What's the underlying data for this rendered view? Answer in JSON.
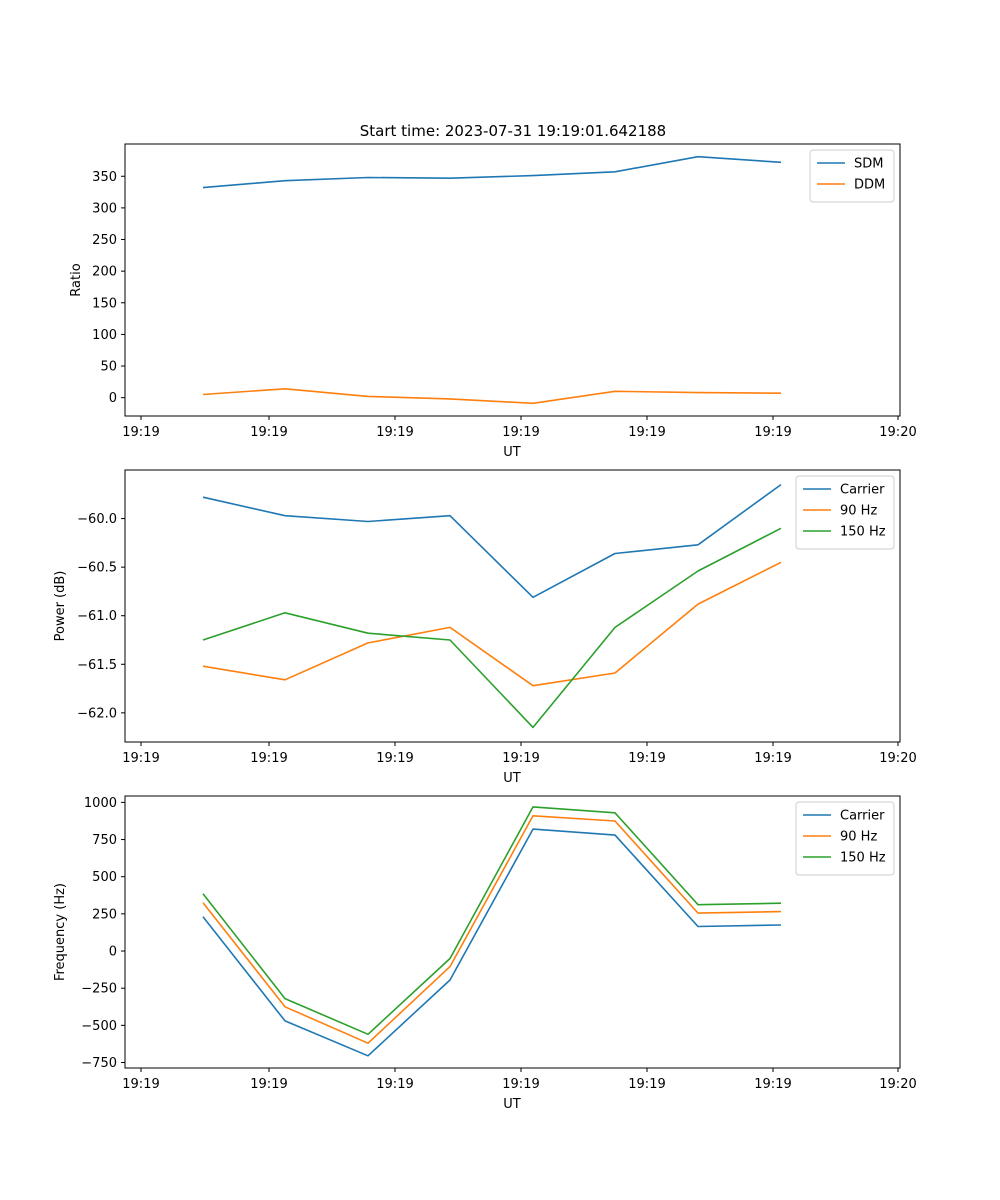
{
  "figure": {
    "title": "Start time: 2023-07-31 19:19:01.642188"
  },
  "colors": {
    "series_1": "#1f77b4",
    "series_2": "#ff7f0e",
    "series_3": "#2ca02c"
  },
  "chart_data": [
    {
      "type": "line",
      "title": "Start time: 2023-07-31 19:19:01.642188",
      "xlabel": "UT",
      "ylabel": "Ratio",
      "x_tick_labels": [
        "19:19",
        "19:19",
        "19:19",
        "19:19",
        "19:19",
        "19:19",
        "19:20"
      ],
      "y_ticks": [
        0,
        50,
        100,
        150,
        200,
        250,
        300,
        350
      ],
      "y_tick_labels": [
        "0",
        "50",
        "100",
        "150",
        "200",
        "250",
        "300",
        "350"
      ],
      "ylim": [
        -29,
        401
      ],
      "legend_position": "top-right",
      "grid": false,
      "series": [
        {
          "name": "SDM",
          "color": "#1f77b4",
          "values": [
            332,
            343,
            348,
            347,
            351,
            357,
            381,
            372
          ]
        },
        {
          "name": "DDM",
          "color": "#ff7f0e",
          "values": [
            5,
            14,
            2,
            -2,
            -9,
            10,
            8,
            7
          ]
        }
      ]
    },
    {
      "type": "line",
      "title": "",
      "xlabel": "UT",
      "ylabel": "Power (dB)",
      "x_tick_labels": [
        "19:19",
        "19:19",
        "19:19",
        "19:19",
        "19:19",
        "19:19",
        "19:20"
      ],
      "y_ticks": [
        -62.0,
        -61.5,
        -61.0,
        -60.5,
        -60.0
      ],
      "y_tick_labels": [
        "−62.0",
        "−61.5",
        "−61.0",
        "−60.5",
        "−60.0"
      ],
      "ylim": [
        -62.3,
        -59.5
      ],
      "legend_position": "top-right",
      "grid": false,
      "series": [
        {
          "name": "Carrier",
          "color": "#1f77b4",
          "values": [
            -59.78,
            -59.97,
            -60.03,
            -59.97,
            -60.81,
            -60.36,
            -60.27,
            -59.65
          ]
        },
        {
          "name": "90 Hz",
          "color": "#ff7f0e",
          "values": [
            -61.52,
            -61.66,
            -61.28,
            -61.12,
            -61.72,
            -61.59,
            -60.88,
            -60.45
          ]
        },
        {
          "name": "150 Hz",
          "color": "#2ca02c",
          "values": [
            -61.25,
            -60.97,
            -61.18,
            -61.25,
            -62.15,
            -61.12,
            -60.54,
            -60.1
          ]
        }
      ]
    },
    {
      "type": "line",
      "title": "",
      "xlabel": "UT",
      "ylabel": "Frequency (Hz)",
      "x_tick_labels": [
        "19:19",
        "19:19",
        "19:19",
        "19:19",
        "19:19",
        "19:19",
        "19:20"
      ],
      "y_ticks": [
        -750,
        -500,
        -250,
        0,
        250,
        500,
        750,
        1000
      ],
      "y_tick_labels": [
        "−750",
        "−500",
        "−250",
        "0",
        "250",
        "500",
        "750",
        "1000"
      ],
      "ylim": [
        -787,
        1043
      ],
      "legend_position": "top-right",
      "grid": false,
      "series": [
        {
          "name": "Carrier",
          "color": "#1f77b4",
          "values": [
            230,
            -470,
            -705,
            -195,
            820,
            780,
            165,
            175
          ]
        },
        {
          "name": "90 Hz",
          "color": "#ff7f0e",
          "values": [
            325,
            -375,
            -620,
            -105,
            910,
            875,
            255,
            265
          ]
        },
        {
          "name": "150 Hz",
          "color": "#2ca02c",
          "values": [
            385,
            -320,
            -560,
            -50,
            970,
            930,
            312,
            322
          ]
        }
      ]
    }
  ]
}
